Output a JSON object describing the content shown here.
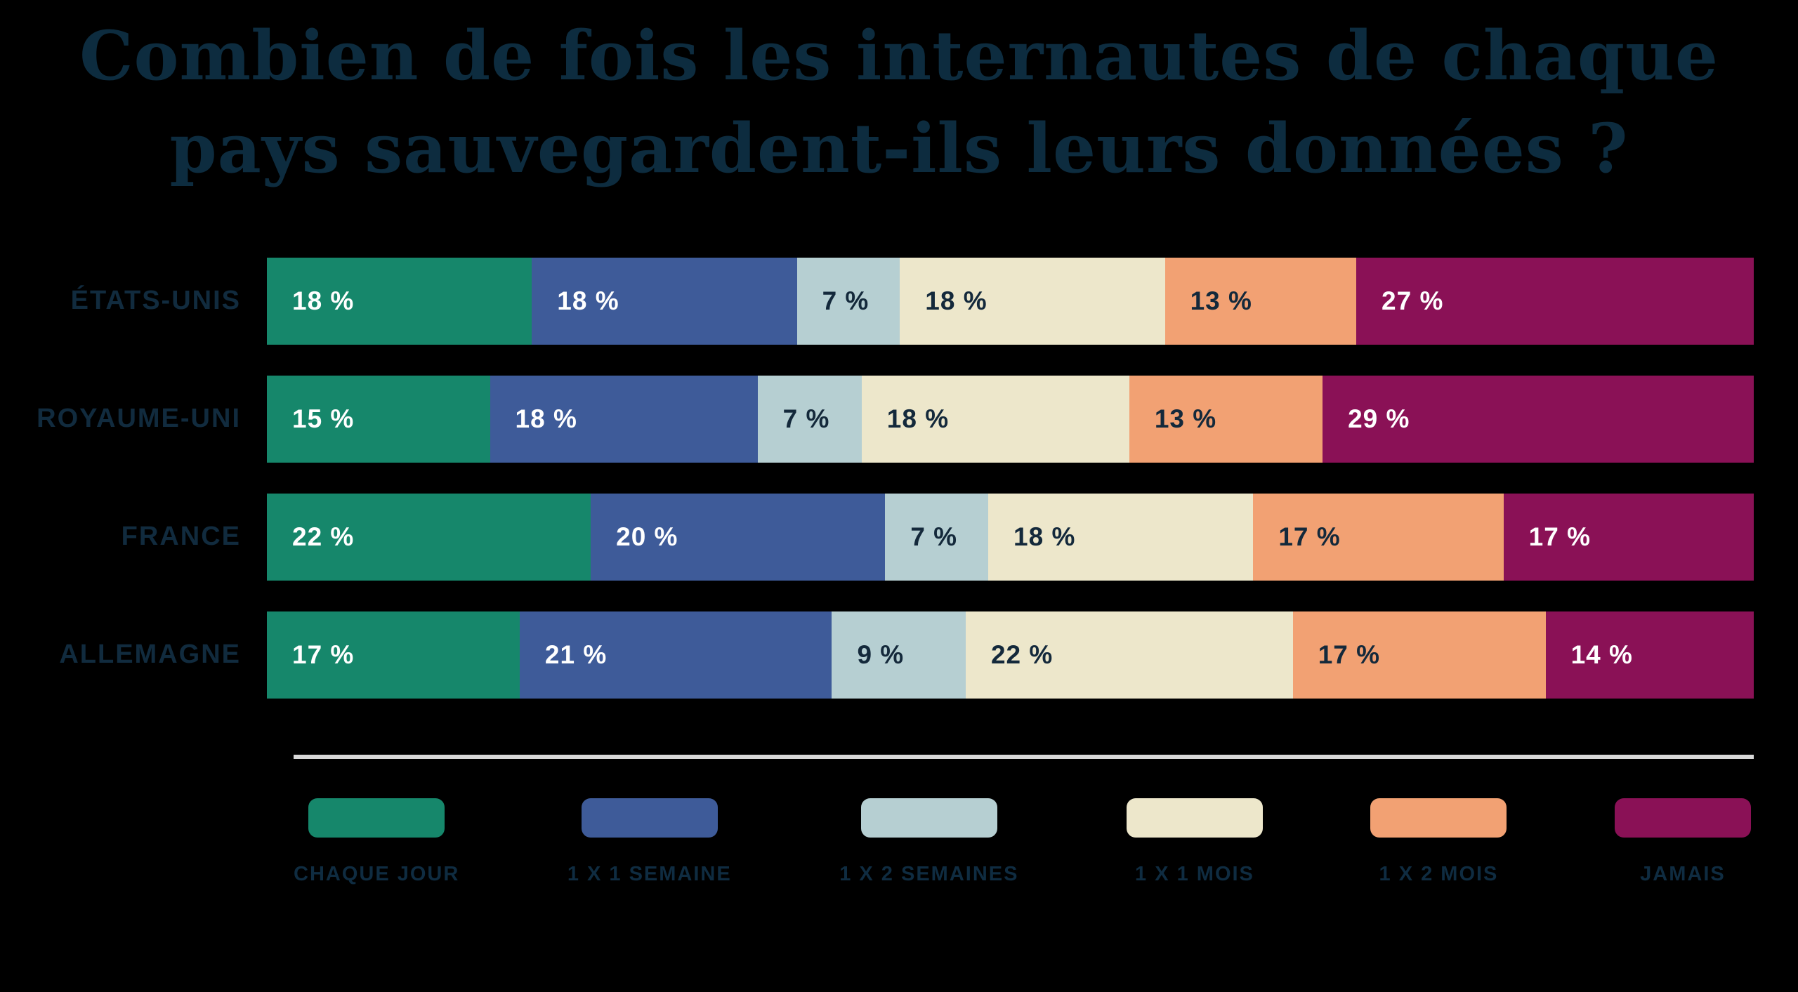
{
  "title": {
    "lines": [
      "Combien de fois les internautes de chaque",
      "pays sauvegardent-ils leurs données ?"
    ],
    "color": "#0D2C3F"
  },
  "colors": {
    "background": "#000000",
    "navy_text": "#112B3E",
    "separator": "#D8D8D8"
  },
  "value_suffix": " %",
  "chart_data": {
    "type": "bar",
    "orientation": "horizontal-stacked",
    "title": "Combien de fois les internautes de chaque pays sauvegardent-ils leurs données ?",
    "categories": [
      "ÉTATS-UNIS",
      "ROYAUME-UNI",
      "FRANCE",
      "ALLEMAGNE"
    ],
    "series": [
      {
        "name": "CHAQUE JOUR",
        "color": "#16876B",
        "text_color": "#FFFFFF",
        "values": [
          18,
          15,
          22,
          17
        ]
      },
      {
        "name": "1 X 1 SEMAINE",
        "color": "#3E5B99",
        "text_color": "#FFFFFF",
        "values": [
          18,
          18,
          20,
          21
        ]
      },
      {
        "name": "1 X 2 SEMAINES",
        "color": "#B6CFD2",
        "text_color": "#14293B",
        "values": [
          7,
          7,
          7,
          9
        ]
      },
      {
        "name": "1 X 1 MOIS",
        "color": "#EDE7CB",
        "text_color": "#14293B",
        "values": [
          18,
          18,
          18,
          22
        ]
      },
      {
        "name": "1 X 2 MOIS",
        "color": "#F2A173",
        "text_color": "#14293B",
        "values": [
          13,
          13,
          17,
          17
        ]
      },
      {
        "name": "JAMAIS",
        "color": "#8A1156",
        "text_color": "#FFFFFF",
        "values": [
          27,
          29,
          17,
          14
        ]
      }
    ],
    "value_labels": [
      [
        "18 %",
        "18 %",
        "7 %",
        "18 %",
        "13 %",
        "27 %"
      ],
      [
        "15 %",
        "18 %",
        "7 %",
        "18 %",
        "13 %",
        "29 %"
      ],
      [
        "22 %",
        "20 %",
        "7 %",
        "18 %",
        "17 %",
        "17 %"
      ],
      [
        "17 %",
        "21 %",
        "9 %",
        "22 %",
        "17 %",
        "14 %"
      ]
    ],
    "legend_position": "bottom",
    "grid": false
  }
}
